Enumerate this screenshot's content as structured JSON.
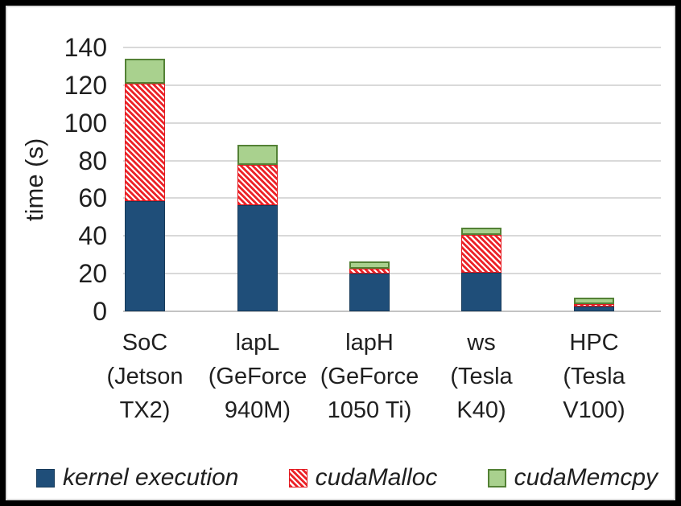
{
  "chart_data": {
    "type": "bar",
    "stacked": true,
    "title": "",
    "xlabel": "",
    "ylabel": "time (s)",
    "ylim": [
      0,
      140
    ],
    "yticks": [
      0,
      20,
      40,
      60,
      80,
      100,
      120,
      140
    ],
    "grid": true,
    "legend_position": "bottom",
    "categories": [
      "SoC (Jetson TX2)",
      "lapL (GeForce 940M)",
      "lapH (GeForce 1050 Ti)",
      "ws (Tesla K40)",
      "HPC (Tesla V100)"
    ],
    "category_lines": [
      [
        "SoC",
        "(Jetson",
        "TX2)"
      ],
      [
        "lapL",
        "(GeForce",
        "940M)"
      ],
      [
        "lapH",
        "(GeForce",
        "1050 Ti)"
      ],
      [
        "ws",
        "(Tesla",
        "K40)"
      ],
      [
        "HPC",
        "(Tesla",
        "V100)"
      ]
    ],
    "series": [
      {
        "name": "kernel execution",
        "key": "kernel",
        "pattern": "solid",
        "color": "#1F4E79",
        "values": [
          58.5,
          56.5,
          20,
          20.5,
          2.5
        ]
      },
      {
        "name": "cudaMalloc",
        "key": "malloc",
        "pattern": "diagonal-hatch",
        "color": "#EC2227",
        "hatch_background": "#FFFFFF",
        "values": [
          62.5,
          21,
          2.5,
          20,
          1.3
        ]
      },
      {
        "name": "cudaMemcpy",
        "key": "memcpy",
        "pattern": "solid",
        "color": "#A9D18E",
        "border_color": "#538135",
        "values": [
          13,
          11,
          4,
          4,
          3.5
        ]
      }
    ],
    "totals": [
      134,
      88.5,
      26.5,
      44.5,
      7.3
    ]
  },
  "colors": {
    "gridline": "#D9D9D9",
    "axis_line": "#C3C3C3",
    "text": "#1F1F1F",
    "frame_border": "#000000",
    "background": "#FFFFFF"
  }
}
